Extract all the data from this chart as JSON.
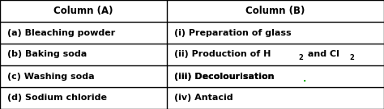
{
  "col_a_header": "Column (A)",
  "col_b_header": "Column (B)",
  "col_a_rows": [
    "(a) Bleaching powder",
    "(b) Baking soda",
    "(c) Washing soda",
    "(d) Sodium chloride"
  ],
  "col_b_rows": [
    "(i) Preparation of glass",
    "(ii) Production of H_2 and Cl_2",
    "(iii) Decolourisation",
    "(iv) Antacid"
  ],
  "bg_color": "#ffffff",
  "border_color": "#000000",
  "header_fontsize": 8.5,
  "cell_fontsize": 8.0,
  "col_split": 0.435,
  "fig_width": 4.74,
  "fig_height": 1.35,
  "dpi": 100
}
